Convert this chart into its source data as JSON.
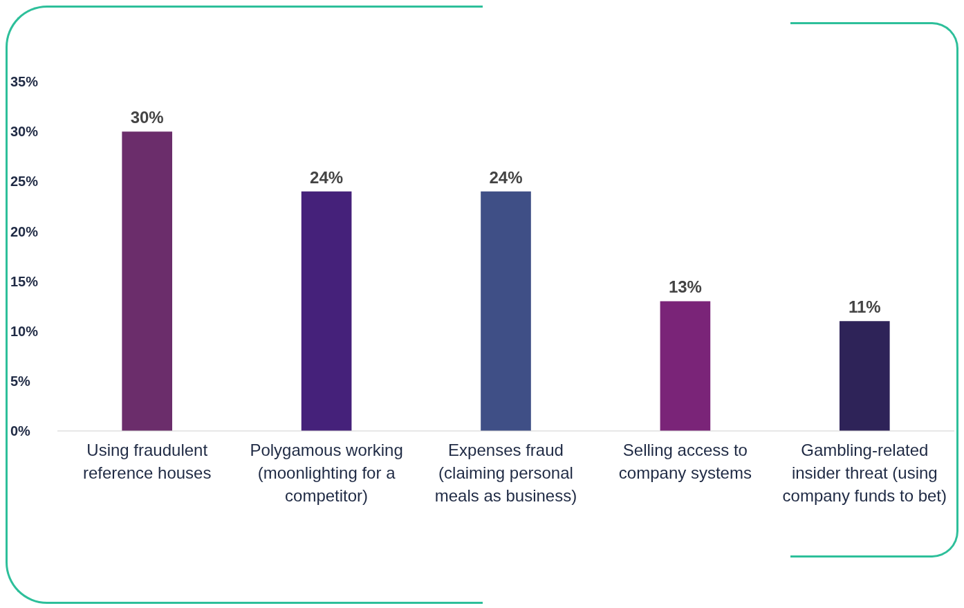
{
  "chart_data": {
    "type": "bar",
    "categories": [
      "Using fraudulent reference houses",
      "Polygamous working (moonlighting for a competitor)",
      "Expenses fraud (claiming personal meals as business)",
      "Selling access to company systems",
      "Gambling-related insider threat (using company funds to bet)"
    ],
    "values": [
      30,
      24,
      24,
      13,
      11
    ],
    "value_labels": [
      "30%",
      "24%",
      "24%",
      "13%",
      "11%"
    ],
    "colors": [
      "#6b2d6b",
      "#45217a",
      "#3f4f86",
      "#7a2478",
      "#2e2358"
    ],
    "ylim": [
      0,
      35
    ],
    "yticks": [
      {
        "value": 0,
        "label": "0%"
      },
      {
        "value": 5,
        "label": "5%"
      },
      {
        "value": 10,
        "label": "10%"
      },
      {
        "value": 15,
        "label": "15%"
      },
      {
        "value": 20,
        "label": "20%"
      },
      {
        "value": 25,
        "label": "25%"
      },
      {
        "value": 30,
        "label": "30%"
      },
      {
        "value": 35,
        "label": "35%"
      }
    ],
    "grid": false,
    "legend": false
  }
}
